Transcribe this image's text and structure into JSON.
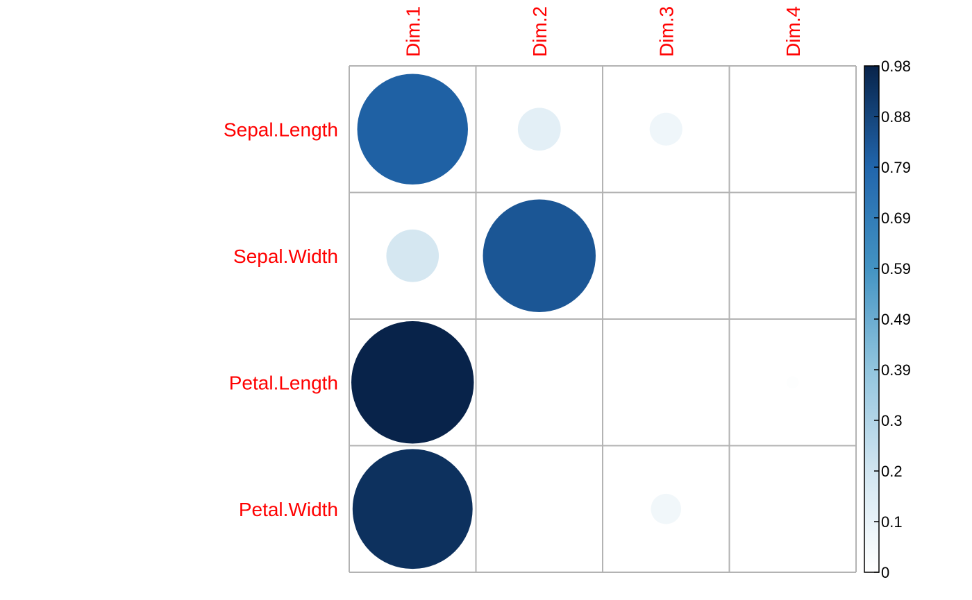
{
  "chart_data": {
    "type": "heatmap",
    "subtype": "correlation-circle",
    "rows": [
      "Sepal.Length",
      "Sepal.Width",
      "Petal.Length",
      "Petal.Width"
    ],
    "columns": [
      "Dim.1",
      "Dim.2",
      "Dim.3",
      "Dim.4"
    ],
    "values": [
      [
        0.8,
        0.12,
        0.07,
        0.0
      ],
      [
        0.18,
        0.83,
        0.0,
        0.0
      ],
      [
        0.98,
        0.0,
        0.0,
        0.01
      ],
      [
        0.94,
        0.0,
        0.06,
        0.0
      ]
    ],
    "colorbar": {
      "min": 0,
      "max": 0.98,
      "ticks": [
        "0.98",
        "0.88",
        "0.79",
        "0.69",
        "0.59",
        "0.49",
        "0.39",
        "0.3",
        "0.2",
        "0.1",
        "0"
      ],
      "colors": [
        "#ffffff",
        "#08234a"
      ]
    },
    "label_color": "#ff0000",
    "grid": true,
    "grid_color": "#b3b3b3"
  }
}
